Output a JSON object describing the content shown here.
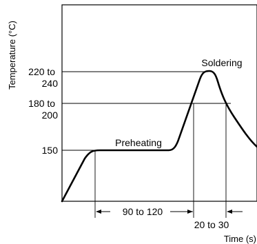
{
  "chart_data": {
    "type": "line",
    "title": "",
    "xlabel": "Time (s)",
    "ylabel": "Temperature (°C)",
    "grid": false,
    "y_tick_labels": [
      {
        "lines": [
          "220 to",
          "240"
        ],
        "value": 230
      },
      {
        "lines": [
          "180 to",
          "200"
        ],
        "value": 190
      },
      {
        "lines": [
          "150"
        ],
        "value": 150
      }
    ],
    "phases": {
      "preheating": "Preheating",
      "soldering": "Soldering"
    },
    "durations": {
      "preheat": "90 to 120",
      "above_180": "20 to 30"
    },
    "profile": [
      {
        "phase": "start",
        "temp": 25
      },
      {
        "phase": "preheat_start",
        "temp": 150
      },
      {
        "phase": "preheat_end",
        "temp": 150
      },
      {
        "phase": "peak",
        "temp": 230
      },
      {
        "phase": "end",
        "temp": 150
      }
    ]
  }
}
